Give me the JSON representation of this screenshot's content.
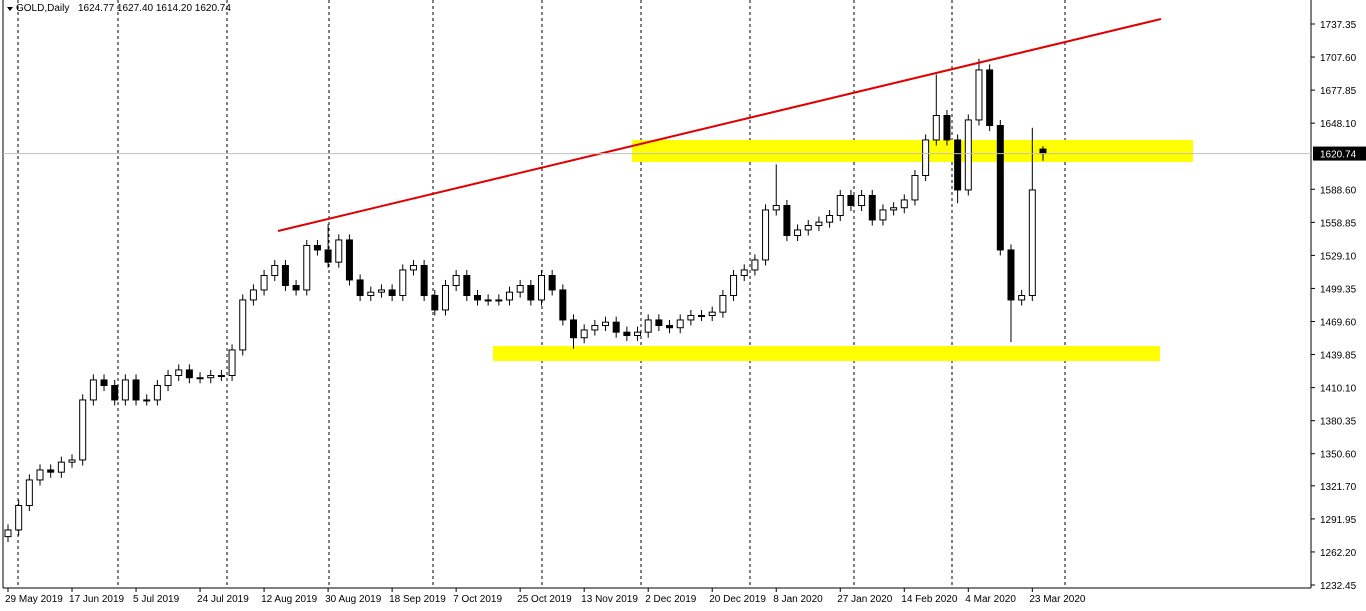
{
  "chart_data": {
    "type": "candlestick",
    "title": "GOLD,Daily",
    "ohlc_text": "1624.77 1627.40 1614.20 1620.74",
    "categories": [
      "29 May 2019",
      null,
      null,
      null,
      null,
      null,
      "17 Jun 2019",
      null,
      null,
      null,
      null,
      null,
      "5 Jul 2019",
      null,
      null,
      null,
      null,
      null,
      "24 Jul 2019",
      null,
      null,
      null,
      null,
      null,
      "12 Aug 2019",
      null,
      null,
      null,
      null,
      null,
      "30 Aug 2019",
      null,
      null,
      null,
      null,
      null,
      "18 Sep 2019",
      null,
      null,
      null,
      null,
      null,
      "7 Oct 2019",
      null,
      null,
      null,
      null,
      null,
      "25 Oct 2019",
      null,
      null,
      null,
      null,
      null,
      "13 Nov 2019",
      null,
      null,
      null,
      null,
      null,
      "2 Dec 2019",
      null,
      null,
      null,
      null,
      null,
      "20 Dec 2019",
      null,
      null,
      null,
      null,
      null,
      "8 Jan 2020",
      null,
      null,
      null,
      null,
      null,
      "27 Jan 2020",
      null,
      null,
      null,
      null,
      null,
      "14 Feb 2020",
      null,
      null,
      null,
      null,
      null,
      "4 Mar 2020",
      null,
      null,
      null,
      null,
      null,
      "23 Mar 2020",
      null
    ],
    "open": [
      1276,
      1282,
      1304,
      1327,
      1336,
      1334,
      1343,
      1345,
      1399,
      1417,
      1412,
      1399,
      1417,
      1399,
      1399,
      1412,
      1421,
      1426,
      1419,
      1419,
      1421,
      1421,
      1444,
      1489,
      1498,
      1511,
      1520,
      1502,
      1498,
      1538,
      1534,
      1523,
      1543,
      1507,
      1493,
      1496,
      1498,
      1493,
      1516,
      1520,
      1493,
      1480,
      1502,
      1511,
      1493,
      1489,
      1489,
      1489,
      1496,
      1502,
      1489,
      1511,
      1498,
      1471,
      1455,
      1462,
      1466,
      1469,
      1460,
      1457,
      1460,
      1471,
      1466,
      1464,
      1471,
      1475,
      1475,
      1478,
      1493,
      1511,
      1516,
      1525,
      1570,
      1574,
      1547,
      1552,
      1556,
      1559,
      1565,
      1583,
      1574,
      1583,
      1561,
      1570,
      1572,
      1579,
      1601,
      1633,
      1655,
      1633,
      1588,
      1651,
      1696,
      1646,
      1534,
      1489,
      1493,
      1624.77
    ],
    "high": [
      1287,
      1309,
      1332,
      1341,
      1341,
      1348,
      1350,
      1404,
      1422,
      1422,
      1417,
      1422,
      1422,
      1404,
      1417,
      1426,
      1431,
      1431,
      1424,
      1426,
      1426,
      1449,
      1494,
      1503,
      1516,
      1525,
      1525,
      1507,
      1543,
      1543,
      1557,
      1548,
      1548,
      1512,
      1501,
      1503,
      1503,
      1521,
      1525,
      1525,
      1498,
      1507,
      1516,
      1516,
      1498,
      1494,
      1494,
      1501,
      1507,
      1507,
      1516,
      1516,
      1503,
      1476,
      1467,
      1471,
      1474,
      1474,
      1465,
      1465,
      1476,
      1476,
      1471,
      1476,
      1480,
      1480,
      1483,
      1498,
      1516,
      1521,
      1530,
      1575,
      1611,
      1579,
      1557,
      1561,
      1564,
      1570,
      1588,
      1588,
      1588,
      1588,
      1575,
      1577,
      1584,
      1606,
      1638,
      1692,
      1660,
      1638,
      1656,
      1706,
      1701,
      1651,
      1539,
      1498,
      1644,
      1627.4
    ],
    "low": [
      1271,
      1277,
      1299,
      1322,
      1329,
      1329,
      1338,
      1340,
      1394,
      1407,
      1394,
      1394,
      1394,
      1394,
      1394,
      1407,
      1416,
      1414,
      1414,
      1414,
      1416,
      1416,
      1439,
      1484,
      1493,
      1506,
      1497,
      1493,
      1493,
      1529,
      1518,
      1518,
      1502,
      1488,
      1488,
      1491,
      1488,
      1488,
      1511,
      1488,
      1475,
      1475,
      1497,
      1488,
      1484,
      1484,
      1484,
      1484,
      1491,
      1484,
      1484,
      1493,
      1466,
      1445,
      1450,
      1457,
      1461,
      1455,
      1452,
      1452,
      1455,
      1461,
      1459,
      1459,
      1466,
      1470,
      1470,
      1473,
      1488,
      1506,
      1511,
      1520,
      1565,
      1542,
      1542,
      1547,
      1551,
      1554,
      1560,
      1569,
      1569,
      1556,
      1556,
      1565,
      1567,
      1574,
      1596,
      1628,
      1628,
      1576,
      1583,
      1646,
      1641,
      1529,
      1451,
      1484,
      1488,
      1614.2
    ],
    "close": [
      1282,
      1304,
      1327,
      1336,
      1334,
      1343,
      1345,
      1399,
      1417,
      1412,
      1399,
      1417,
      1399,
      1399,
      1412,
      1421,
      1426,
      1419,
      1419,
      1421,
      1421,
      1444,
      1489,
      1498,
      1511,
      1520,
      1502,
      1498,
      1538,
      1534,
      1523,
      1543,
      1507,
      1493,
      1496,
      1498,
      1493,
      1516,
      1520,
      1493,
      1480,
      1502,
      1511,
      1493,
      1489,
      1489,
      1489,
      1496,
      1502,
      1489,
      1511,
      1498,
      1471,
      1455,
      1462,
      1466,
      1469,
      1460,
      1457,
      1460,
      1471,
      1466,
      1464,
      1471,
      1475,
      1475,
      1478,
      1493,
      1511,
      1516,
      1525,
      1570,
      1574,
      1547,
      1552,
      1556,
      1559,
      1565,
      1583,
      1574,
      1583,
      1561,
      1570,
      1572,
      1579,
      1601,
      1633,
      1655,
      1633,
      1588,
      1651,
      1696,
      1646,
      1534,
      1489,
      1493,
      1588,
      1620.74
    ],
    "ylim": [
      1229.75,
      1758.95
    ],
    "yticks": [
      1737.35,
      {
        "value": 1707.6,
        "label": "1707.60"
      },
      1677.85,
      {
        "value": 1648.1,
        "label": "1648.10"
      },
      {
        "value": 1588.6,
        "label": "1588.60"
      },
      1558.85,
      {
        "value": 1529.1,
        "label": "1529.10"
      },
      1499.35,
      {
        "value": 1469.6,
        "label": "1469.60"
      },
      1439.85,
      {
        "value": 1410.1,
        "label": "1410.10"
      },
      1380.35,
      {
        "value": 1350.6,
        "label": "1350.60"
      },
      {
        "value": 1321.7,
        "label": "1321.70"
      },
      1291.95,
      {
        "value": 1262.2,
        "label": "1262.20"
      },
      1232.45
    ],
    "up_color": "#ffffff",
    "down_color": "#000000"
  }
}
